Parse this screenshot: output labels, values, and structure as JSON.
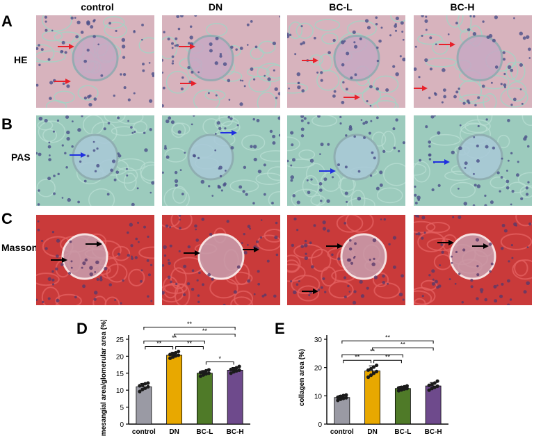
{
  "columns": [
    "control",
    "DN",
    "BC-L",
    "BC-H"
  ],
  "rows": [
    {
      "letter": "A",
      "stain": "HE"
    },
    {
      "letter": "B",
      "stain": "PAS"
    },
    {
      "letter": "C",
      "stain": "Masson"
    }
  ],
  "colors": {
    "he_bg": "#d7b3bd",
    "he_tint": "#9fd6c6",
    "pas_bg": "#9ccbbd",
    "masson_bg": "#c93a3a",
    "nucleus": "#4a4f88",
    "arrow_red": "#e8202a",
    "arrow_blue": "#1f2fe0",
    "arrow_black": "#000000",
    "bar_control": "#9a9aa4",
    "bar_dn": "#e8a800",
    "bar_bcl": "#4f7a28",
    "bar_bch": "#6e4a8c"
  },
  "chart_data": [
    {
      "panel": "D",
      "type": "bar",
      "categories": [
        "control",
        "DN",
        "BC-L",
        "BC-H"
      ],
      "values": [
        11.0,
        20.3,
        15.0,
        15.9
      ],
      "errors": [
        1.0,
        0.9,
        0.8,
        0.8
      ],
      "points": [
        [
          9.6,
          10.2,
          10.6,
          11.0,
          11.3,
          11.6,
          11.9,
          12.1
        ],
        [
          19.4,
          19.8,
          20.1,
          20.3,
          20.5,
          20.8,
          21.0,
          21.4
        ],
        [
          14.1,
          14.5,
          14.8,
          15.0,
          15.2,
          15.4,
          15.7,
          16.0
        ],
        [
          15.0,
          15.4,
          15.7,
          15.9,
          16.1,
          16.3,
          16.6,
          17.0
        ]
      ],
      "ylabel": "mesangial area/glomerular area (%)",
      "ylim": [
        0,
        25
      ],
      "yticks": [
        0,
        5,
        10,
        15,
        20,
        25
      ],
      "significance": [
        {
          "from": 0,
          "to": 1,
          "label": "**"
        },
        {
          "from": 1,
          "to": 2,
          "label": "**"
        },
        {
          "from": 2,
          "to": 3,
          "label": "*"
        },
        {
          "from": 0,
          "to": 2,
          "label": "**"
        },
        {
          "from": 1,
          "to": 3,
          "label": "**"
        },
        {
          "from": 0,
          "to": 3,
          "label": "**"
        }
      ]
    },
    {
      "panel": "E",
      "type": "bar",
      "categories": [
        "control",
        "DN",
        "BC-L",
        "BC-H"
      ],
      "values": [
        9.4,
        18.8,
        12.6,
        13.5
      ],
      "errors": [
        0.8,
        1.8,
        0.8,
        1.2
      ],
      "points": [
        [
          8.4,
          8.8,
          9.1,
          9.3,
          9.5,
          9.8,
          10.1,
          10.3
        ],
        [
          16.6,
          17.3,
          18.0,
          18.6,
          19.1,
          19.6,
          20.2,
          20.8
        ],
        [
          11.8,
          12.1,
          12.4,
          12.6,
          12.8,
          13.0,
          13.2,
          13.5
        ],
        [
          12.0,
          12.6,
          13.0,
          13.4,
          13.7,
          14.0,
          14.5,
          15.2
        ]
      ],
      "ylabel": "collagen area (%)",
      "ylim": [
        0,
        30
      ],
      "yticks": [
        0,
        10,
        20,
        30
      ],
      "significance": [
        {
          "from": 0,
          "to": 1,
          "label": "**"
        },
        {
          "from": 1,
          "to": 2,
          "label": "**"
        },
        {
          "from": 0,
          "to": 2,
          "label": "**"
        },
        {
          "from": 1,
          "to": 3,
          "label": "**"
        },
        {
          "from": 0,
          "to": 3,
          "label": "**"
        }
      ]
    }
  ]
}
